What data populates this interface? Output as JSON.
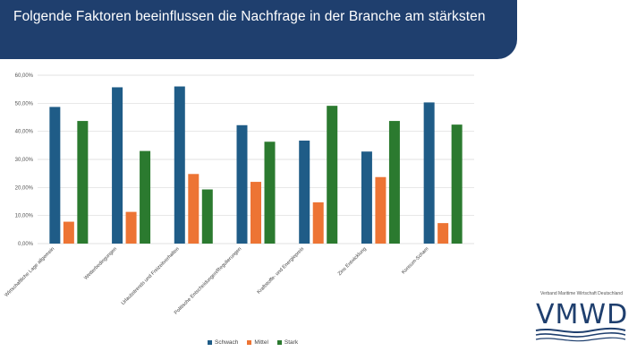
{
  "header": {
    "title": "Folgende Faktoren beeinflussen die Nachfrage in der Branche am stärksten"
  },
  "colors": {
    "header_band": "#1f3f6e",
    "schwach": "#1f5c87",
    "mittel": "#ed7434",
    "stark": "#2b7a2f",
    "logo": "#1f3f6e"
  },
  "chart_data": {
    "type": "bar",
    "categories": [
      "Wirtschaftliche Lage allgemein",
      "Wetterbedingungen",
      "Urlaubstrends und Freizeitverhalten",
      "Politische Entscheidungen/Regulierungen",
      "Kraftstoffe- und Energiepreis",
      "Zins Entwicklung",
      "Konsum-Scham"
    ],
    "series": [
      {
        "name": "Schwach",
        "values": [
          48.7,
          55.7,
          56.0,
          42.2,
          36.7,
          32.8,
          50.3
        ]
      },
      {
        "name": "Mittel",
        "values": [
          7.8,
          11.3,
          24.8,
          22.0,
          14.7,
          23.7,
          7.3
        ]
      },
      {
        "name": "Stark",
        "values": [
          43.7,
          33.0,
          19.3,
          36.3,
          49.1,
          43.7,
          42.4
        ]
      }
    ],
    "y_ticks": [
      "0,00%",
      "10,00%",
      "20,00%",
      "30,00%",
      "40,00%",
      "50,00%",
      "60,00%"
    ],
    "ylim": [
      0,
      60
    ],
    "grid": true,
    "legend_position": "bottom"
  },
  "legend": {
    "schwach": "Schwach",
    "mittel": "Mittel",
    "stark": "Stark"
  },
  "logo": {
    "tagline": "Verband Maritime Wirtschaft Deutschland",
    "wordmark": "VMWD"
  }
}
